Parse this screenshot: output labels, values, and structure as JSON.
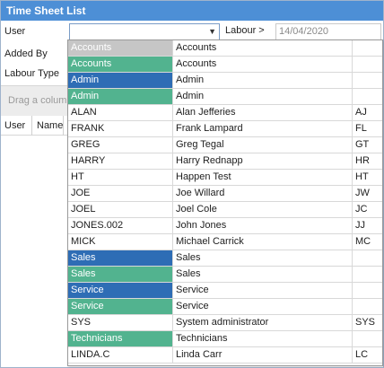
{
  "window": {
    "title": "Time Sheet List"
  },
  "filters": {
    "user_label": "User",
    "user_value": "",
    "added_by_label": "Added By",
    "labour_type_label": "Labour Type",
    "labour_label": "Labour >",
    "labour_date": "14/04/2020"
  },
  "group_bar": {
    "hint": "Drag a column"
  },
  "grid": {
    "columns": [
      "User",
      "Name"
    ]
  },
  "icons": {
    "dropdown_arrow": "chevron-down-icon"
  },
  "colors": {
    "title_bar": "#4d8fd6",
    "gray": "#c6c6c6",
    "green": "#52b38f",
    "blue": "#2e6db5"
  },
  "dropdown": {
    "rows": [
      {
        "code": "Accounts",
        "name": "Accounts",
        "initials": "",
        "style": "gray"
      },
      {
        "code": "Accounts",
        "name": "Accounts",
        "initials": "",
        "style": "green"
      },
      {
        "code": "Admin",
        "name": "Admin",
        "initials": "",
        "style": "blue"
      },
      {
        "code": "Admin",
        "name": "Admin",
        "initials": "",
        "style": "green"
      },
      {
        "code": "ALAN",
        "name": "Alan Jefferies",
        "initials": "AJ",
        "style": ""
      },
      {
        "code": "FRANK",
        "name": "Frank Lampard",
        "initials": "FL",
        "style": ""
      },
      {
        "code": "GREG",
        "name": "Greg Tegal",
        "initials": "GT",
        "style": ""
      },
      {
        "code": "HARRY",
        "name": "Harry Rednapp",
        "initials": "HR",
        "style": ""
      },
      {
        "code": "HT",
        "name": "Happen Test",
        "initials": "HT",
        "style": ""
      },
      {
        "code": "JOE",
        "name": "Joe Willard",
        "initials": "JW",
        "style": ""
      },
      {
        "code": "JOEL",
        "name": "Joel Cole",
        "initials": "JC",
        "style": ""
      },
      {
        "code": "JONES.002",
        "name": "John Jones",
        "initials": "JJ",
        "style": ""
      },
      {
        "code": "MICK",
        "name": "Michael Carrick",
        "initials": "MC",
        "style": ""
      },
      {
        "code": "Sales",
        "name": "Sales",
        "initials": "",
        "style": "blue"
      },
      {
        "code": "Sales",
        "name": "Sales",
        "initials": "",
        "style": "green"
      },
      {
        "code": "Service",
        "name": "Service",
        "initials": "",
        "style": "blue"
      },
      {
        "code": "Service",
        "name": "Service",
        "initials": "",
        "style": "green"
      },
      {
        "code": "SYS",
        "name": "System administrator",
        "initials": "SYS",
        "style": ""
      },
      {
        "code": "Technicians",
        "name": "Technicians",
        "initials": "",
        "style": "green"
      },
      {
        "code": "LINDA.C",
        "name": "Linda Carr",
        "initials": "LC",
        "style": ""
      }
    ]
  }
}
